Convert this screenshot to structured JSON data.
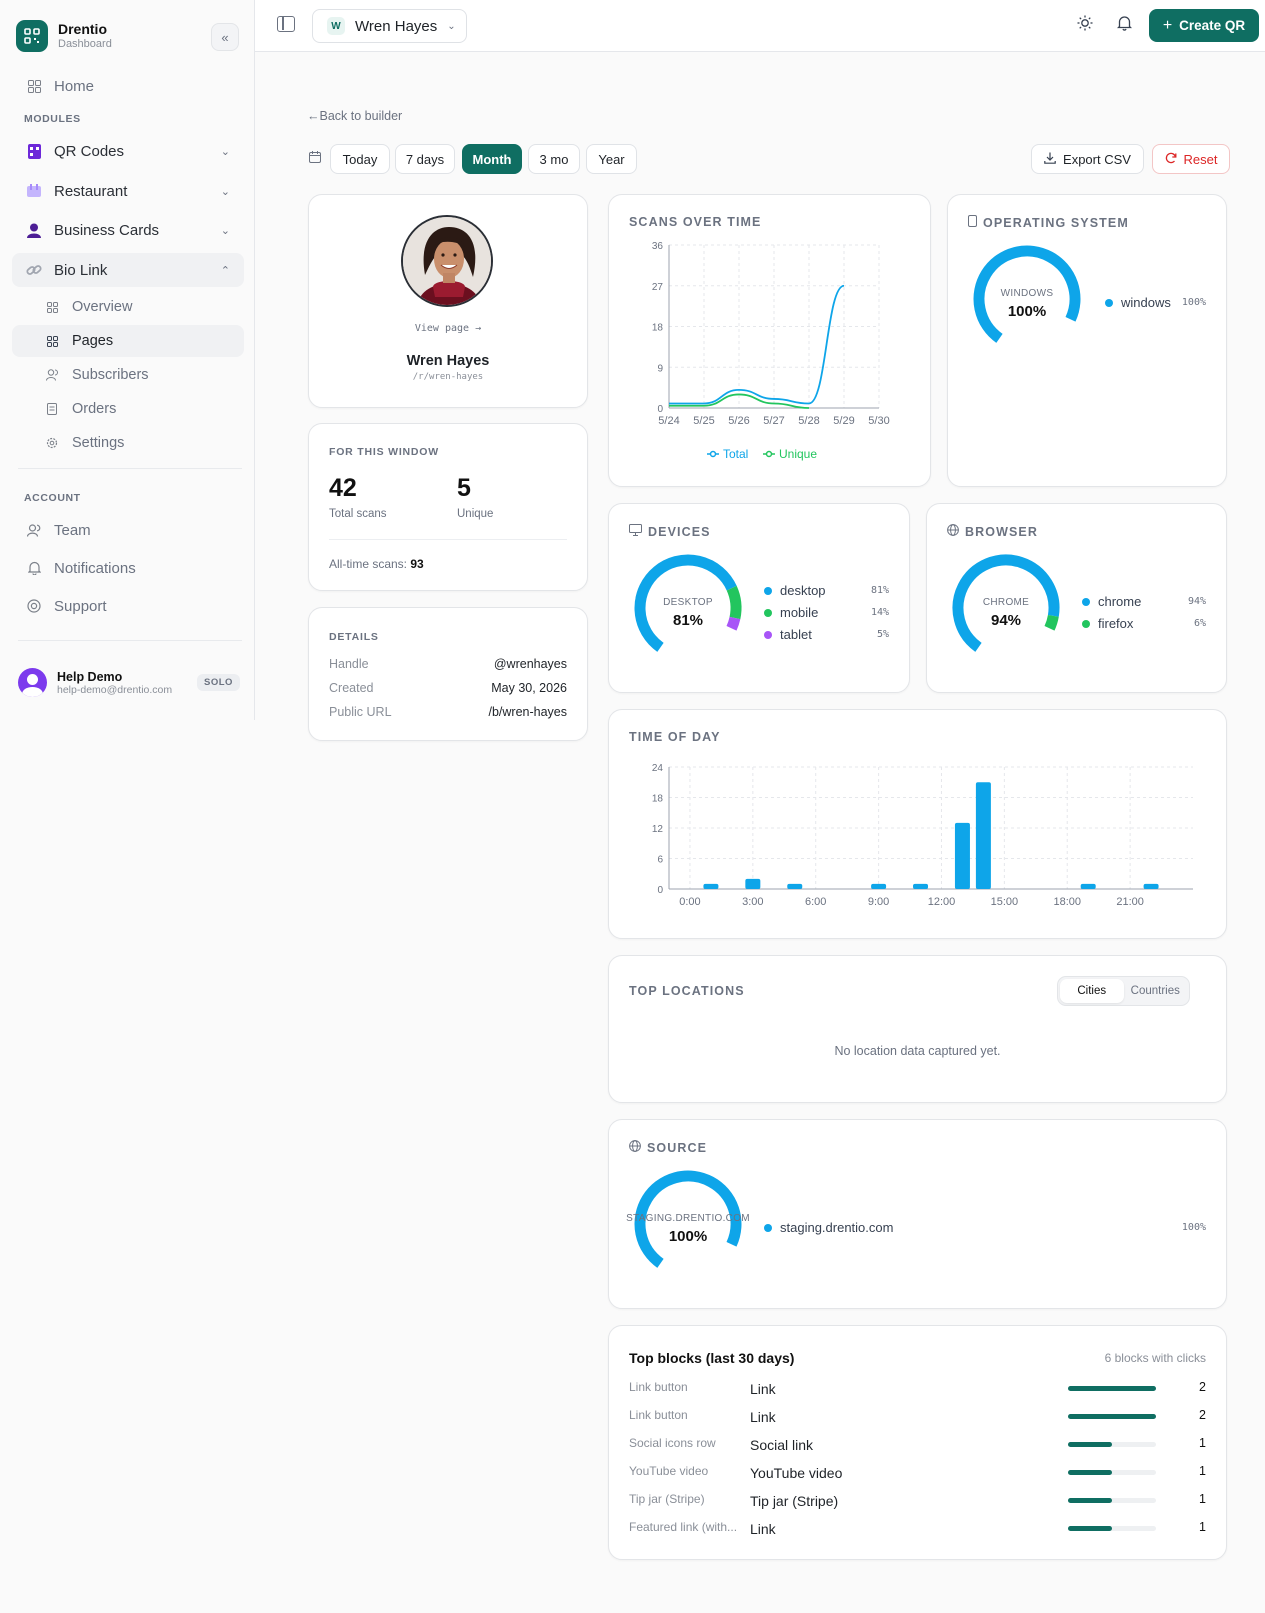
{
  "app": {
    "brand_name": "Drentio",
    "brand_sub": "Dashboard",
    "accent": "#0f6e62"
  },
  "sidebar": {
    "home": "Home",
    "modules_label": "MODULES",
    "modules": [
      {
        "label": "QR Codes",
        "icon": "qr-icon"
      },
      {
        "label": "Restaurant",
        "icon": "restaurant-icon"
      },
      {
        "label": "Business Cards",
        "icon": "business-card-icon"
      },
      {
        "label": "Bio Link",
        "icon": "link-icon"
      }
    ],
    "bio_sub": [
      {
        "label": "Overview"
      },
      {
        "label": "Pages"
      },
      {
        "label": "Subscribers"
      },
      {
        "label": "Orders"
      },
      {
        "label": "Settings"
      }
    ],
    "account_label": "ACCOUNT",
    "account": [
      {
        "label": "Team"
      },
      {
        "label": "Notifications"
      },
      {
        "label": "Support"
      }
    ],
    "user": {
      "name": "Help Demo",
      "email": "help-demo@drentio.com",
      "plan": "SOLO"
    }
  },
  "topbar": {
    "workspace_initial": "W",
    "workspace_name": "Wren Hayes",
    "create_label": "Create QR"
  },
  "toolbar": {
    "back_label": "Back to builder",
    "ranges": [
      "Today",
      "7 days",
      "Month",
      "3 mo",
      "Year"
    ],
    "active_range": "Month",
    "export_label": "Export CSV",
    "reset_label": "Reset"
  },
  "profile": {
    "view_page": "View page →",
    "name": "Wren Hayes",
    "slug": "/r/wren-hayes"
  },
  "window_stats": {
    "title": "FOR THIS WINDOW",
    "total": "42",
    "total_label": "Total scans",
    "unique": "5",
    "unique_label": "Unique",
    "all_time_label": "All-time scans:",
    "all_time": "93"
  },
  "details": {
    "title": "DETAILS",
    "rows": [
      {
        "k": "Handle",
        "v": "@wrenhayes"
      },
      {
        "k": "Created",
        "v": "May 30, 2026"
      },
      {
        "k": "Public URL",
        "v": "/b/wren-hayes"
      }
    ]
  },
  "scans_title": "SCANS OVER TIME",
  "os": {
    "title": "OPERATING SYSTEM",
    "center_label": "WINDOWS",
    "center_value": "100%",
    "items": [
      {
        "name": "windows",
        "pct": "100%",
        "color": "#0ea5e9"
      }
    ]
  },
  "devices": {
    "title": "DEVICES",
    "center_label": "DESKTOP",
    "center_value": "81%",
    "items": [
      {
        "name": "desktop",
        "pct": "81%",
        "color": "#0ea5e9"
      },
      {
        "name": "mobile",
        "pct": "14%",
        "color": "#22c55e"
      },
      {
        "name": "tablet",
        "pct": "5%",
        "color": "#a855f7"
      }
    ]
  },
  "browser": {
    "title": "BROWSER",
    "center_label": "CHROME",
    "center_value": "94%",
    "items": [
      {
        "name": "chrome",
        "pct": "94%",
        "color": "#0ea5e9"
      },
      {
        "name": "firefox",
        "pct": "6%",
        "color": "#22c55e"
      }
    ]
  },
  "time_of_day_title": "TIME OF DAY",
  "locations": {
    "title": "TOP LOCATIONS",
    "tab_cities": "Cities",
    "tab_countries": "Countries",
    "empty": "No location data captured yet."
  },
  "source": {
    "title": "SOURCE",
    "center_label": "STAGING.DRENTIO.COM",
    "center_value": "100%",
    "items": [
      {
        "name": "staging.drentio.com",
        "pct": "100%",
        "color": "#0ea5e9"
      }
    ]
  },
  "top_blocks": {
    "title": "Top blocks (last 30 days)",
    "summary": "6 blocks with clicks",
    "max": 2,
    "rows": [
      {
        "type": "Link button",
        "label": "Link",
        "count": 2
      },
      {
        "type": "Link button",
        "label": "Link",
        "count": 2
      },
      {
        "type": "Social icons row",
        "label": "Social link",
        "count": 1
      },
      {
        "type": "YouTube video",
        "label": "YouTube video",
        "count": 1
      },
      {
        "type": "Tip jar (Stripe)",
        "label": "Tip jar (Stripe)",
        "count": 1
      },
      {
        "type": "Featured link (with...",
        "label": "Link",
        "count": 1
      }
    ]
  },
  "chart_data": [
    {
      "type": "line",
      "title": "SCANS OVER TIME",
      "x": [
        "5/24",
        "5/25",
        "5/26",
        "5/27",
        "5/28",
        "5/29",
        "5/30"
      ],
      "ylim": [
        0,
        36
      ],
      "yticks": [
        0,
        9,
        18,
        27,
        36
      ],
      "grid": true,
      "legend_position": "bottom",
      "series": [
        {
          "name": "Total",
          "color": "#0ea5e9",
          "values": [
            1,
            1,
            4,
            2,
            1,
            27,
            null
          ]
        },
        {
          "name": "Unique",
          "color": "#22c55e",
          "values": [
            0.5,
            0.5,
            3,
            1,
            0,
            null,
            null
          ]
        }
      ]
    },
    {
      "type": "bar",
      "title": "TIME OF DAY",
      "x_tick_labels": [
        "0:00",
        "3:00",
        "6:00",
        "9:00",
        "12:00",
        "15:00",
        "18:00",
        "21:00"
      ],
      "categories": [
        0,
        1,
        2,
        3,
        4,
        5,
        6,
        7,
        8,
        9,
        10,
        11,
        12,
        13,
        14,
        15,
        16,
        17,
        18,
        19,
        20,
        21,
        22,
        23
      ],
      "values": [
        0,
        1,
        0,
        2,
        0,
        1,
        0,
        0,
        0,
        1,
        0,
        1,
        0,
        13,
        21,
        0,
        0,
        0,
        0,
        1,
        0,
        0,
        1,
        0
      ],
      "ylim": [
        0,
        24
      ],
      "yticks": [
        0,
        6,
        12,
        18,
        24
      ],
      "grid": true,
      "color": "#0ea5e9"
    },
    {
      "type": "pie",
      "title": "OPERATING SYSTEM",
      "categories": [
        "windows"
      ],
      "values": [
        100
      ]
    },
    {
      "type": "pie",
      "title": "DEVICES",
      "categories": [
        "desktop",
        "mobile",
        "tablet"
      ],
      "values": [
        81,
        14,
        5
      ]
    },
    {
      "type": "pie",
      "title": "BROWSER",
      "categories": [
        "chrome",
        "firefox"
      ],
      "values": [
        94,
        6
      ]
    },
    {
      "type": "pie",
      "title": "SOURCE",
      "categories": [
        "staging.drentio.com"
      ],
      "values": [
        100
      ]
    }
  ]
}
